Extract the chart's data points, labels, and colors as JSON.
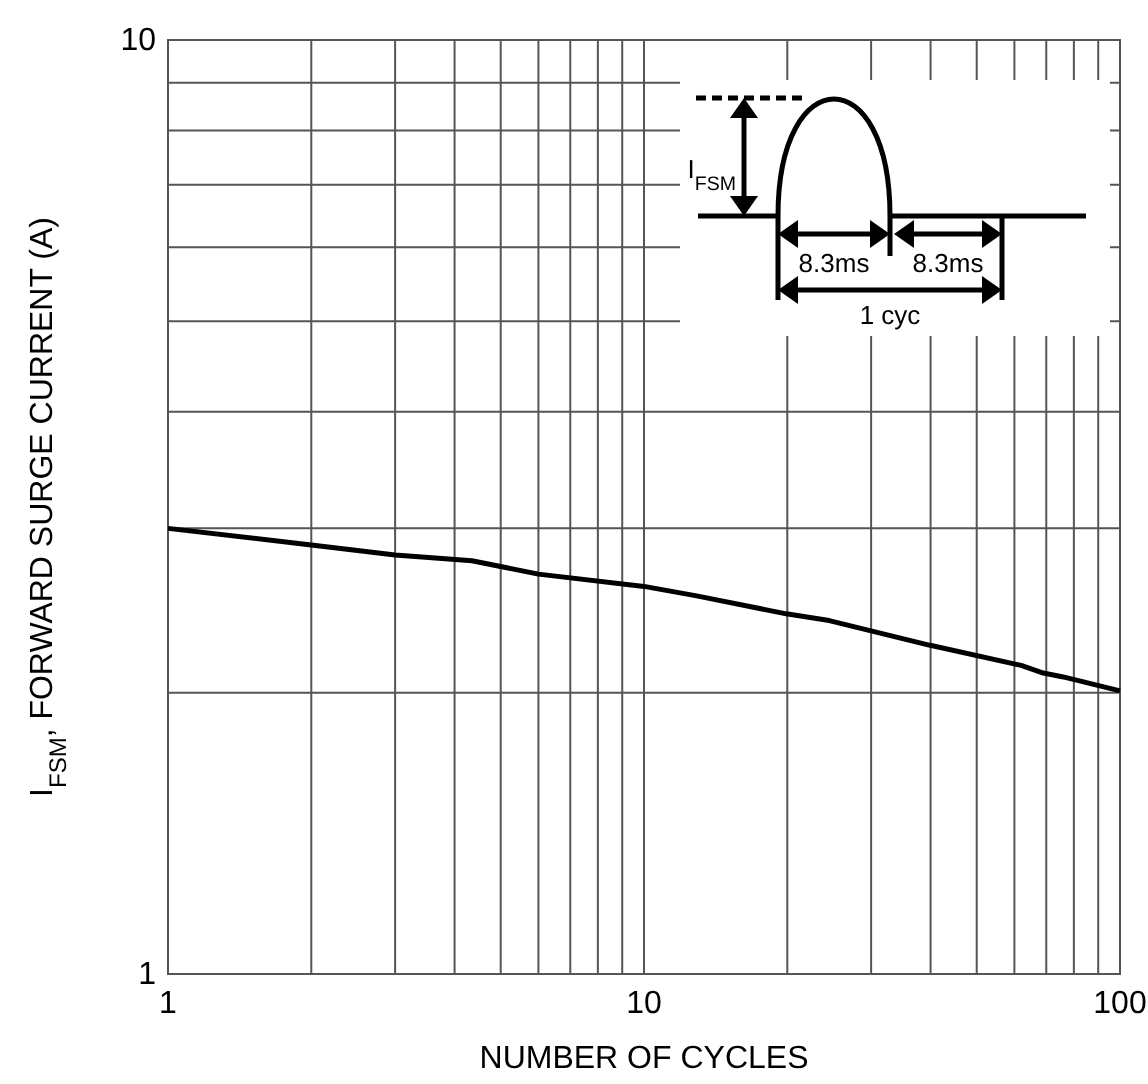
{
  "chart_data": {
    "type": "line",
    "xlabel": "NUMBER OF CYCLES",
    "ylabel": "I$_{FSM}$, FORWARD SURGE CURRENT (A)",
    "x": [
      1,
      2,
      3,
      4.35,
      6,
      10,
      12.9,
      19.9,
      24.5,
      39.7,
      62,
      69,
      76,
      100
    ],
    "series": [
      {
        "color": "#000000",
        "values": [
          3.0,
          2.88,
          2.81,
          2.77,
          2.68,
          2.6,
          2.54,
          2.43,
          2.39,
          2.25,
          2.14,
          2.1,
          2.08,
          2.01
        ]
      }
    ],
    "log": "xy",
    "xlim": [
      1,
      100
    ],
    "ylim": [
      1,
      10
    ],
    "xticks": [
      1,
      {
        "value": 2,
        "label": null
      },
      {
        "value": 3,
        "label": null
      },
      {
        "value": 4,
        "label": null
      },
      {
        "value": 5,
        "label": null
      },
      {
        "value": 6,
        "label": null
      },
      {
        "value": 7,
        "label": null
      },
      {
        "value": 8,
        "label": null
      },
      {
        "value": 9,
        "label": null
      },
      10,
      {
        "value": 20,
        "label": null
      },
      {
        "value": 30,
        "label": null
      },
      {
        "value": 40,
        "label": null
      },
      {
        "value": 50,
        "label": null
      },
      {
        "value": 60,
        "label": null
      },
      {
        "value": 70,
        "label": null
      },
      {
        "value": 80,
        "label": null
      },
      {
        "value": 90,
        "label": null
      },
      100
    ],
    "yticks": [
      1,
      {
        "value": 2,
        "label": null
      },
      {
        "value": 3,
        "label": null
      },
      {
        "value": 4,
        "label": null
      },
      {
        "value": 5,
        "label": null
      },
      {
        "value": 6,
        "label": null
      },
      {
        "value": 7,
        "label": null
      },
      {
        "value": 8,
        "label": null
      },
      {
        "value": 9,
        "label": null
      },
      10
    ],
    "grid": true,
    "marker": "none",
    "line_style": "solid",
    "annotations": [
      "I$_{FSM}$",
      "8.3ms",
      "8.3ms",
      "1 cyc"
    ]
  }
}
